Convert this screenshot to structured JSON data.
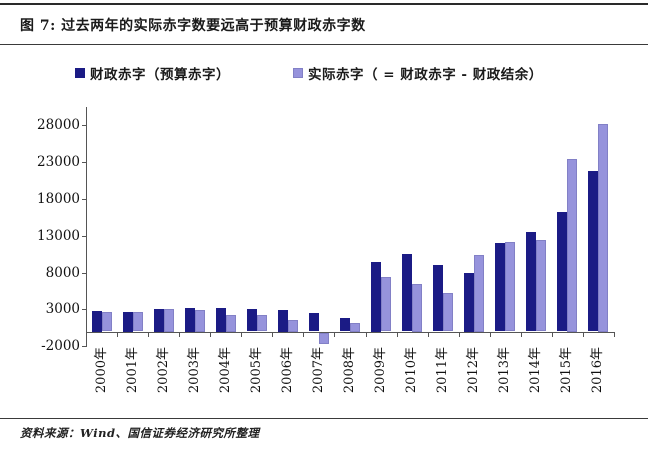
{
  "figure": {
    "title": "图 7: 过去两年的实际赤字数要远高于预算财政赤字数",
    "source": "资料来源：Wind、国信证券经济研究所整理"
  },
  "chart_data": {
    "type": "bar",
    "title": "图 7: 过去两年的实际赤字数要远高于预算财政赤字数",
    "categories": [
      "2000年",
      "2001年",
      "2002年",
      "2003年",
      "2004年",
      "2005年",
      "2006年",
      "2007年",
      "2008年",
      "2009年",
      "2010年",
      "2011年",
      "2012年",
      "2013年",
      "2014年",
      "2015年",
      "2016年"
    ],
    "series": [
      {
        "name": "财政赤字（预算赤字）",
        "color": "#1b1b85",
        "values": [
          2800,
          2700,
          3100,
          3200,
          3200,
          3000,
          2950,
          2450,
          1800,
          9500,
          10500,
          9000,
          8000,
          12000,
          13500,
          16200,
          21800
        ]
      },
      {
        "name": "实际赤字（ = 财政赤字 - 财政结余）",
        "color": "#9693dc",
        "values": [
          2600,
          2600,
          3100,
          2950,
          2250,
          2200,
          1600,
          -1550,
          1200,
          7400,
          6500,
          5200,
          10400,
          12100,
          12400,
          23500,
          28200
        ]
      }
    ],
    "yticks": [
      28000,
      23000,
      18000,
      13000,
      8000,
      3000,
      -2000
    ],
    "ylim": [
      -2000,
      30500
    ],
    "grid": false,
    "legend_position": "top",
    "xlabel": "",
    "ylabel": ""
  },
  "colors": {
    "budget_series": "#1b1b85",
    "actual_series": "#9693dc",
    "axis": "#555555",
    "text": "#1a1a1a"
  }
}
